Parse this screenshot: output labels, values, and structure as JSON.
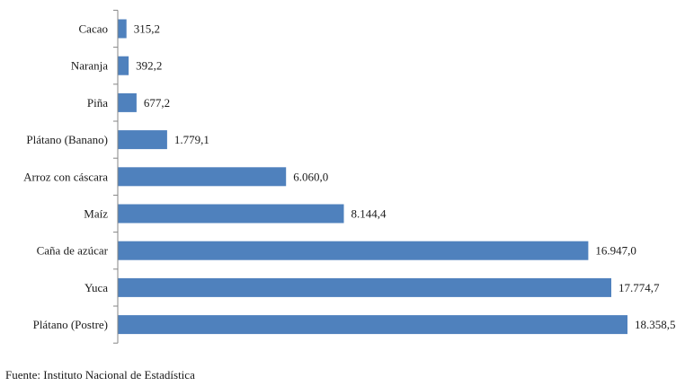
{
  "chart_data": {
    "type": "bar",
    "orientation": "horizontal",
    "categories": [
      "Cacao",
      "Naranja",
      "Piña",
      "Plátano (Banano)",
      "Arroz con cáscara",
      "Maíz",
      "Caña de azúcar",
      "Yuca",
      "Plátano (Postre)"
    ],
    "values": [
      315.2,
      392.2,
      677.2,
      1779.1,
      6060.0,
      8144.4,
      16947.0,
      17774.7,
      18358.5
    ],
    "value_labels": [
      "315,2",
      "392,2",
      "677,2",
      "1.779,1",
      "6.060,0",
      "8.144,4",
      "16.947,0",
      "17.774,7",
      "18.358,5"
    ],
    "title": "",
    "xlabel": "",
    "ylabel": "",
    "xlim": [
      0,
      18358.5
    ],
    "grid": false,
    "legend": "none",
    "bar_color": "#4f81bd",
    "axis_color": "#868686"
  },
  "source": "Fuente: Instituto Nacional de Estadística"
}
